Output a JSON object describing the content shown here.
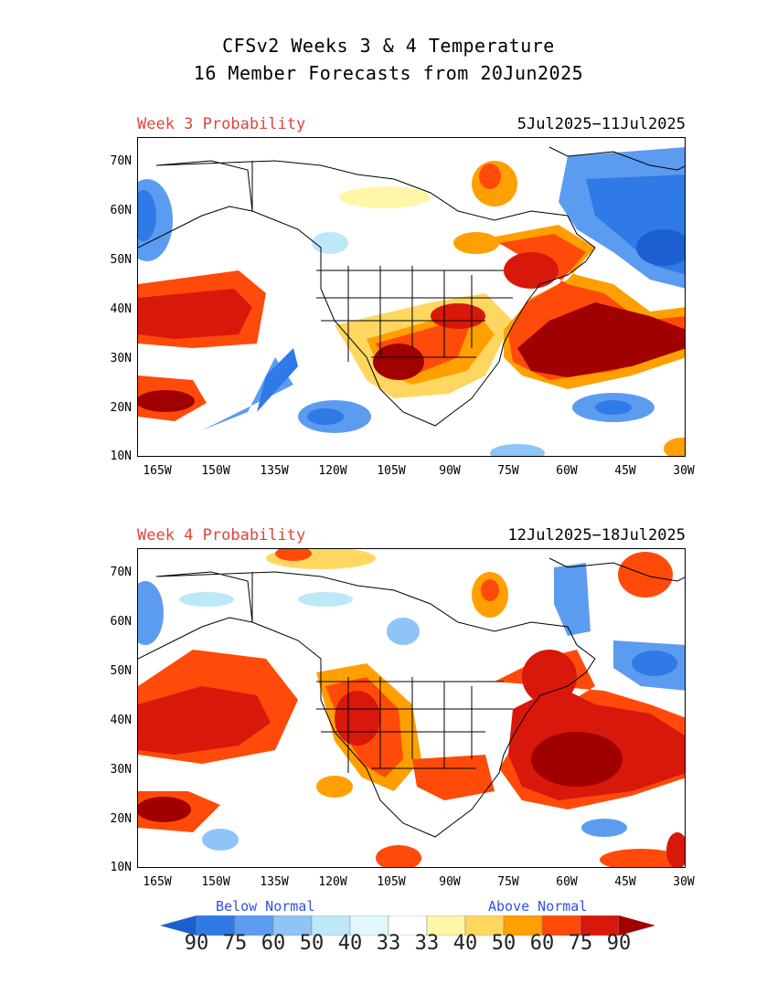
{
  "header": {
    "title_line1": "CFSv2 Weeks 3 & 4 Temperature",
    "title_line2": "16 Member Forecasts from 20Jun2025"
  },
  "panels": [
    {
      "label": "Week 3 Probability",
      "dates": "5Jul2025−11Jul2025"
    },
    {
      "label": "Week 4 Probability",
      "dates": "12Jul2025−18Jul2025"
    }
  ],
  "axes": {
    "lat_labels": [
      "70N",
      "60N",
      "50N",
      "40N",
      "30N",
      "20N",
      "10N"
    ],
    "lon_labels": [
      "165W",
      "150W",
      "135W",
      "120W",
      "105W",
      "90W",
      "75W",
      "60W",
      "45W",
      "30W"
    ]
  },
  "legend": {
    "below_label": "Below Normal",
    "above_label": "Above Normal",
    "values": [
      "90",
      "75",
      "60",
      "50",
      "40",
      "33",
      "33",
      "40",
      "50",
      "60",
      "75",
      "90"
    ],
    "colors": [
      "#1c5fd0",
      "#2f7ae6",
      "#5c9cf0",
      "#8ec4f6",
      "#bde8f8",
      "#e0f8fb",
      "#ffffff",
      "#fff6a8",
      "#ffd760",
      "#ffa000",
      "#ff4a0a",
      "#d8180a",
      "#a00000"
    ]
  }
}
